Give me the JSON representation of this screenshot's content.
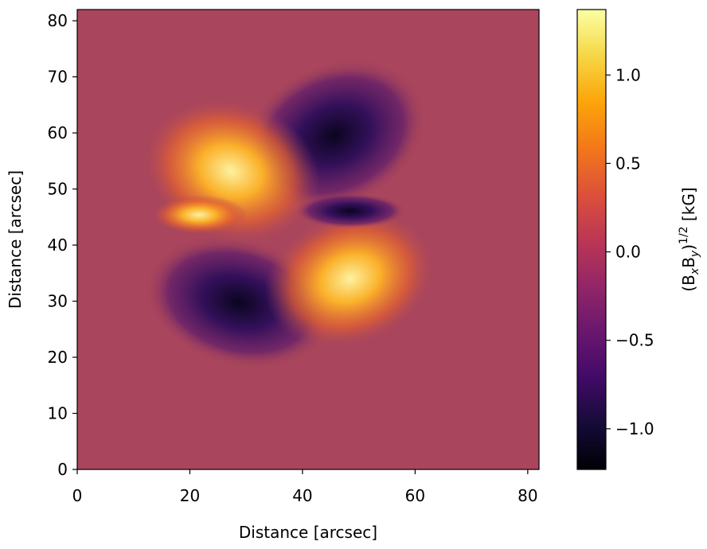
{
  "chart_data": {
    "type": "heatmap",
    "xlabel": "Distance [arcsec]",
    "ylabel": "Distance [arcsec]",
    "xlim": [
      0,
      82
    ],
    "ylim": [
      0,
      82
    ],
    "xticks": [
      0,
      20,
      40,
      60,
      80
    ],
    "yticks": [
      0,
      10,
      20,
      30,
      40,
      50,
      60,
      70,
      80
    ],
    "colormap": "inferno",
    "colorbar_label": [
      "(B",
      "x",
      "B",
      "y",
      ")",
      "1/2",
      " [kG]"
    ],
    "clim": [
      -1.23,
      1.37
    ],
    "cticks": [
      {
        "value": -1.0,
        "label": "−1.0"
      },
      {
        "value": -0.5,
        "label": "−0.5"
      },
      {
        "value": 0,
        "label": "0.0"
      },
      0.5,
      {
        "value": 1.0,
        "label": "1.0"
      }
    ]
  }
}
